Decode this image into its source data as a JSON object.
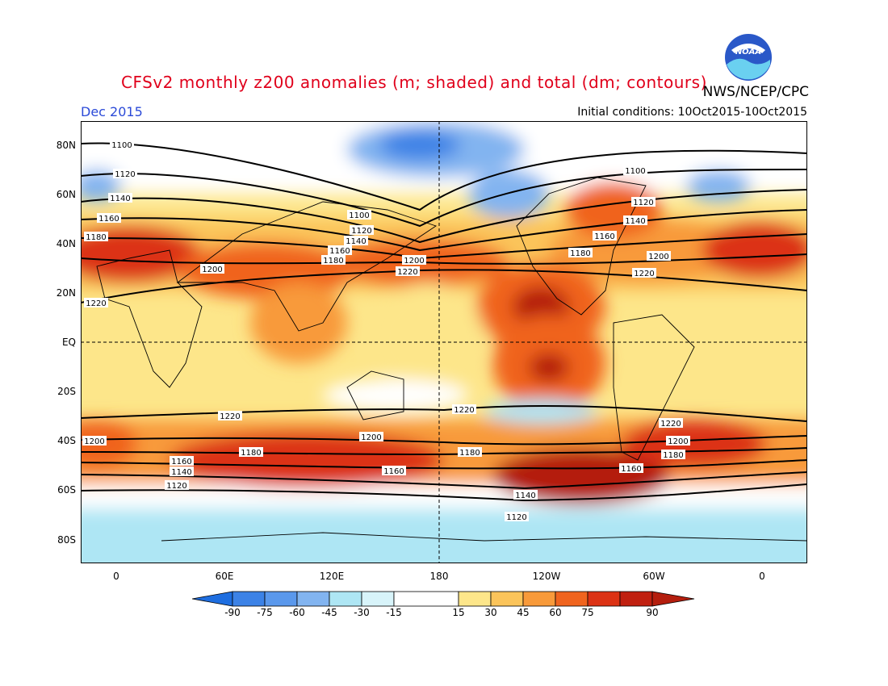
{
  "title": "CFSv2 monthly z200 anomalies (m; shaded) and total (dm; contours)",
  "agency": "NWS/NCEP/CPC",
  "logo_text": "NOAA",
  "month": "Dec 2015",
  "initial_conditions": "Initial conditions: 10Oct2015-10Oct2015",
  "lat_labels": [
    "80N",
    "60N",
    "40N",
    "20N",
    "EQ",
    "20S",
    "40S",
    "60S",
    "80S"
  ],
  "lon_labels": [
    "0",
    "60E",
    "120E",
    "180",
    "120W",
    "60W",
    "0"
  ],
  "colorbar": {
    "labels": [
      "-90",
      "-75",
      "-60",
      "-45",
      "-30",
      "-15",
      "15",
      "30",
      "45",
      "60",
      "75",
      "90"
    ],
    "colors": [
      "#1e6ee0",
      "#3c82e6",
      "#5a98ec",
      "#82b4f0",
      "#aee6f4",
      "#ffffff",
      "#fde68a",
      "#fbc45a",
      "#f89a3a",
      "#f0641e",
      "#dc3214",
      "#b41e0e"
    ]
  },
  "contour_labels": [
    "1100",
    "1120",
    "1140",
    "1160",
    "1180",
    "1200",
    "1220"
  ]
}
